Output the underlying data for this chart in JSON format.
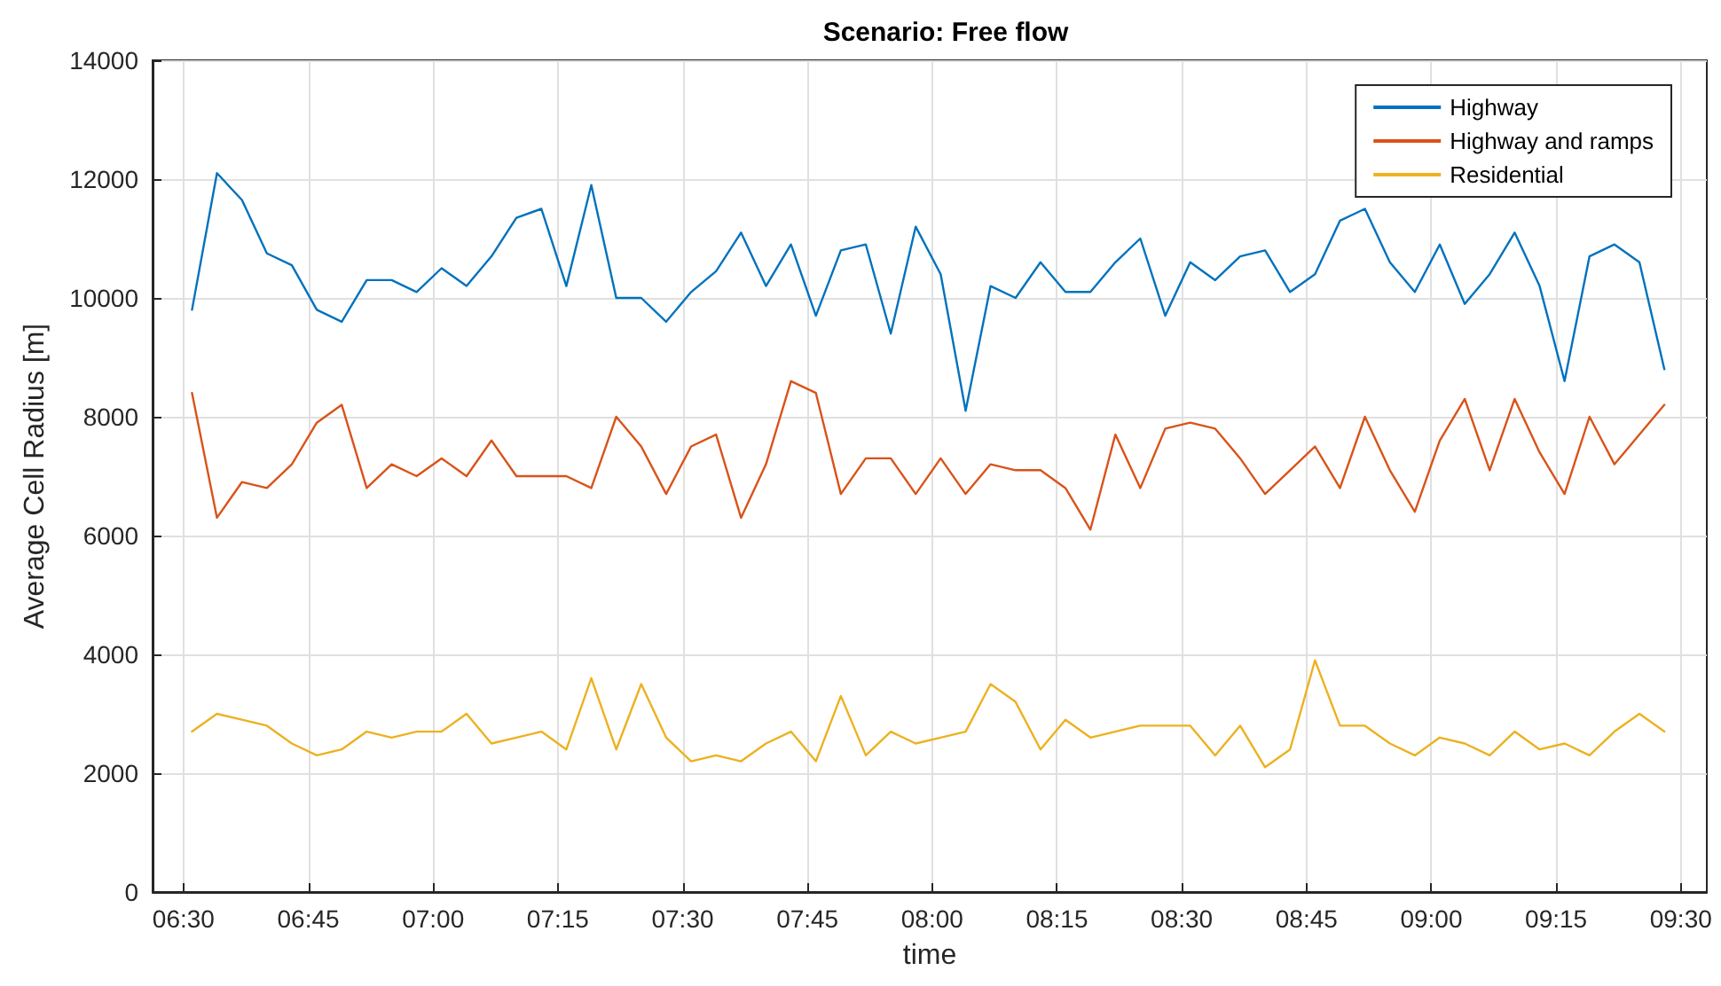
{
  "chart_data": {
    "type": "line",
    "title": "Scenario: Free flow",
    "xlabel": "time",
    "ylabel": "Average Cell Radius [m]",
    "x": [
      6.517,
      6.567,
      6.617,
      6.667,
      6.717,
      6.767,
      6.817,
      6.867,
      6.917,
      6.967,
      7.017,
      7.067,
      7.117,
      7.167,
      7.217,
      7.267,
      7.317,
      7.367,
      7.417,
      7.467,
      7.517,
      7.567,
      7.617,
      7.667,
      7.717,
      7.767,
      7.817,
      7.867,
      7.917,
      7.967,
      8.017,
      8.067,
      8.117,
      8.167,
      8.217,
      8.267,
      8.317,
      8.367,
      8.417,
      8.467,
      8.517,
      8.567,
      8.617,
      8.667,
      8.717,
      8.767,
      8.817,
      8.867,
      8.917,
      8.967,
      9.017,
      9.067,
      9.117,
      9.167,
      9.217,
      9.267,
      9.317,
      9.367,
      9.417,
      9.467
    ],
    "series": [
      {
        "name": "Highway",
        "color": "#0072bd",
        "values": [
          9800,
          12100,
          11650,
          10750,
          10550,
          9800,
          9600,
          10300,
          10300,
          10100,
          10500,
          10200,
          10700,
          11350,
          11500,
          10200,
          11900,
          10000,
          10000,
          9600,
          10100,
          10450,
          11100,
          10200,
          10900,
          9700,
          10800,
          10900,
          9400,
          11200,
          10400,
          8100,
          10200,
          10000,
          10600,
          10100,
          10100,
          10600,
          11000,
          9700,
          10600,
          10300,
          10700,
          10800,
          10100,
          10400,
          11300,
          11500,
          10600,
          10100,
          10900,
          9900,
          10400,
          11100,
          10200,
          8600,
          10700,
          10900,
          10600,
          8800
        ]
      },
      {
        "name": "Highway and ramps",
        "color": "#d95319",
        "values": [
          8400,
          6300,
          6900,
          6800,
          7200,
          7900,
          8200,
          6800,
          7200,
          7000,
          7300,
          7000,
          7600,
          7000,
          7000,
          7000,
          6800,
          8000,
          7500,
          6700,
          7500,
          7700,
          6300,
          7200,
          8600,
          8400,
          6700,
          7300,
          7300,
          6700,
          7300,
          6700,
          7200,
          7100,
          7100,
          6800,
          6100,
          7700,
          6800,
          7800,
          7900,
          7800,
          7300,
          6700,
          7100,
          7500,
          6800,
          8000,
          7100,
          6400,
          7600,
          8300,
          7100,
          8300,
          7400,
          6700,
          8000,
          7200,
          7700,
          8200
        ]
      },
      {
        "name": "Residential",
        "color": "#edb120",
        "values": [
          2700,
          3000,
          2900,
          2800,
          2500,
          2300,
          2400,
          2700,
          2600,
          2700,
          2700,
          3000,
          2500,
          2600,
          2700,
          2400,
          3600,
          2400,
          3500,
          2600,
          2200,
          2300,
          2200,
          2500,
          2700,
          2200,
          3300,
          2300,
          2700,
          2500,
          2600,
          2700,
          3500,
          3200,
          2400,
          2900,
          2600,
          2700,
          2800,
          2800,
          2800,
          2300,
          2800,
          2100,
          2400,
          3900,
          2800,
          2800,
          2500,
          2300,
          2600,
          2500,
          2300,
          2700,
          2400,
          2500,
          2300,
          2700,
          3000,
          2700
        ]
      }
    ],
    "xlim": [
      6.438,
      9.552
    ],
    "xticks": [
      {
        "value": 6.5,
        "label": "06:30"
      },
      {
        "value": 6.75,
        "label": "06:45"
      },
      {
        "value": 7,
        "label": "07:00"
      },
      {
        "value": 7.25,
        "label": "07:15"
      },
      {
        "value": 7.5,
        "label": "07:30"
      },
      {
        "value": 7.75,
        "label": "07:45"
      },
      {
        "value": 8,
        "label": "08:00"
      },
      {
        "value": 8.25,
        "label": "08:15"
      },
      {
        "value": 8.5,
        "label": "08:30"
      },
      {
        "value": 8.75,
        "label": "08:45"
      },
      {
        "value": 9,
        "label": "09:00"
      },
      {
        "value": 9.25,
        "label": "09:15"
      },
      {
        "value": 9.5,
        "label": "09:30"
      }
    ],
    "ylim": [
      0,
      14000
    ],
    "yticks": [
      0,
      2000,
      4000,
      6000,
      8000,
      10000,
      12000,
      14000
    ],
    "grid": true,
    "legend": "top right",
    "marker": "none",
    "line_style": "solid"
  }
}
